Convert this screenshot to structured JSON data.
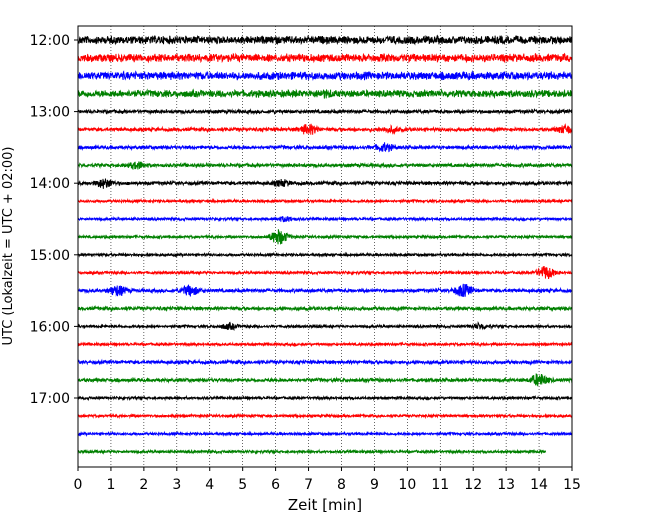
{
  "chart_data": {
    "type": "line",
    "title": "",
    "xlabel": "Zeit  [min]",
    "ylabel": "UTC (Lokalzeit = UTC + 02:00)",
    "xlim": [
      0,
      15
    ],
    "x_ticks": [
      "0",
      "1",
      "2",
      "3",
      "4",
      "5",
      "6",
      "7",
      "8",
      "9",
      "10",
      "11",
      "12",
      "13",
      "14",
      "15"
    ],
    "y_ticks": [
      {
        "label": "12:00",
        "trace": 0
      },
      {
        "label": "13:00",
        "trace": 4
      },
      {
        "label": "14:00",
        "trace": 8
      },
      {
        "label": "15:00",
        "trace": 12
      },
      {
        "label": "16:00",
        "trace": 16
      },
      {
        "label": "17:00",
        "trace": 20
      }
    ],
    "grid": "vertical dotted",
    "trace_minutes": 15,
    "trace_count": 24,
    "color_cycle": [
      "#000000",
      "#ff0000",
      "#0000ff",
      "#008000"
    ],
    "series": [
      {
        "start": "12:00",
        "amplitude": 9,
        "events": []
      },
      {
        "start": "12:15",
        "amplitude": 9,
        "events": []
      },
      {
        "start": "12:30",
        "amplitude": 9,
        "events": []
      },
      {
        "start": "12:45",
        "amplitude": 8,
        "events": [
          {
            "t": 7.5,
            "amp": 3
          }
        ]
      },
      {
        "start": "13:00",
        "amplitude": 4,
        "events": []
      },
      {
        "start": "13:15",
        "amplitude": 4,
        "events": [
          {
            "t": 7.0,
            "amp": 9
          },
          {
            "t": 9.5,
            "amp": 5
          },
          {
            "t": 14.8,
            "amp": 7
          }
        ]
      },
      {
        "start": "13:30",
        "amplitude": 4,
        "events": [
          {
            "t": 9.3,
            "amp": 7
          }
        ]
      },
      {
        "start": "13:45",
        "amplitude": 4,
        "events": [
          {
            "t": 1.8,
            "amp": 6
          }
        ]
      },
      {
        "start": "14:00",
        "amplitude": 4,
        "events": [
          {
            "t": 0.8,
            "amp": 8
          },
          {
            "t": 6.2,
            "amp": 5
          }
        ]
      },
      {
        "start": "14:15",
        "amplitude": 3,
        "events": []
      },
      {
        "start": "14:30",
        "amplitude": 3,
        "events": [
          {
            "t": 6.3,
            "amp": 4
          }
        ]
      },
      {
        "start": "14:45",
        "amplitude": 3,
        "events": [
          {
            "t": 6.1,
            "amp": 14
          }
        ]
      },
      {
        "start": "15:00",
        "amplitude": 3,
        "events": []
      },
      {
        "start": "15:15",
        "amplitude": 3,
        "events": [
          {
            "t": 14.2,
            "amp": 12
          }
        ]
      },
      {
        "start": "15:30",
        "amplitude": 4,
        "events": [
          {
            "t": 1.2,
            "amp": 9
          },
          {
            "t": 3.4,
            "amp": 9
          },
          {
            "t": 11.7,
            "amp": 11
          }
        ]
      },
      {
        "start": "15:45",
        "amplitude": 4,
        "events": []
      },
      {
        "start": "16:00",
        "amplitude": 3,
        "events": [
          {
            "t": 4.6,
            "amp": 5
          },
          {
            "t": 12.2,
            "amp": 5
          }
        ]
      },
      {
        "start": "16:15",
        "amplitude": 3,
        "events": []
      },
      {
        "start": "16:30",
        "amplitude": 4,
        "events": []
      },
      {
        "start": "16:45",
        "amplitude": 4,
        "events": [
          {
            "t": 14.0,
            "amp": 11
          }
        ]
      },
      {
        "start": "17:00",
        "amplitude": 3,
        "events": []
      },
      {
        "start": "17:15",
        "amplitude": 3,
        "events": []
      },
      {
        "start": "17:30",
        "amplitude": 3,
        "events": []
      },
      {
        "start": "17:45",
        "amplitude": 3,
        "events": [],
        "end_min": 14.2
      }
    ]
  }
}
